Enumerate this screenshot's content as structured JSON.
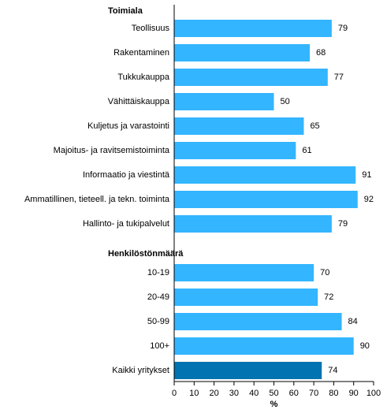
{
  "chart_data": {
    "type": "bar",
    "orientation": "horizontal",
    "xlabel": "%",
    "xlim": [
      0,
      100
    ],
    "x_ticks": [
      0,
      10,
      20,
      30,
      40,
      50,
      60,
      70,
      80,
      90,
      100
    ],
    "grid": false,
    "colors": {
      "bar": "#33b5ff",
      "highlight": "#0073b0"
    },
    "groups": [
      {
        "label": "Toimiala",
        "categories": [
          "Teollisuus",
          "Rakentaminen",
          "Tukkukauppa",
          "Vähittäiskauppa",
          "Kuljetus ja varastointi",
          "Majoitus- ja ravitsemistoiminta",
          "Informaatio ja viestintä",
          "Ammatillinen, tieteell. ja tekn. toiminta",
          "Hallinto- ja tukipalvelut"
        ],
        "values": [
          79,
          68,
          77,
          50,
          65,
          61,
          91,
          92,
          79
        ]
      },
      {
        "label": "Henkilöstönmäärä",
        "categories": [
          "10-19",
          "20-49",
          "50-99",
          "100+",
          "Kaikki yritykset"
        ],
        "values": [
          70,
          72,
          84,
          90,
          74
        ],
        "highlight": [
          "Kaikki yritykset"
        ]
      }
    ]
  }
}
